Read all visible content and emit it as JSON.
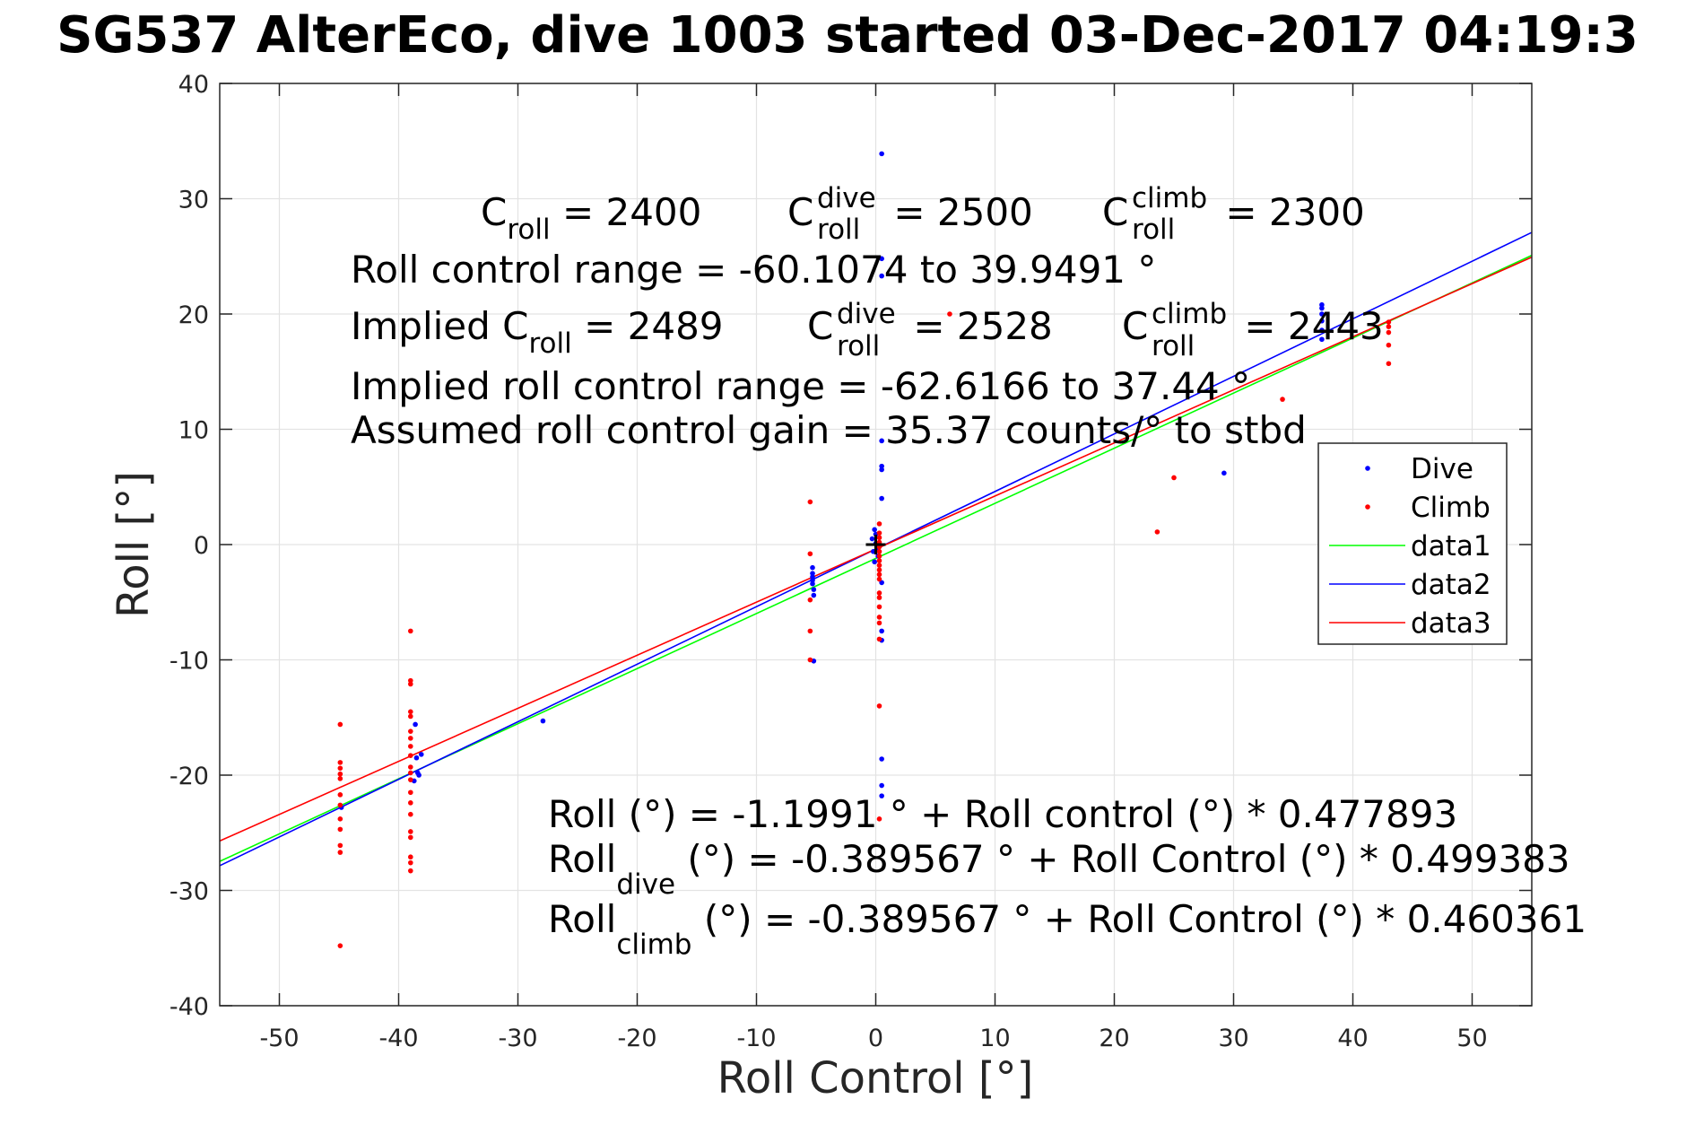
{
  "chart_data": {
    "type": "scatter",
    "title": "SG537 AlterEco, dive 1003 started 03-Dec-2017 04:19:3",
    "xlabel": "Roll Control [°]",
    "ylabel": "Roll [°]",
    "xlim": [
      -55,
      55
    ],
    "ylim": [
      -40,
      40
    ],
    "xticks": [
      -50,
      -40,
      -30,
      -20,
      -10,
      0,
      10,
      20,
      30,
      40,
      50
    ],
    "yticks": [
      -40,
      -30,
      -20,
      -10,
      0,
      10,
      20,
      30,
      40
    ],
    "grid": true,
    "legend_position": "right",
    "colors": {
      "dive": "#0000ff",
      "climb": "#ff0000",
      "data1": "#00ff00",
      "data2": "#0000ff",
      "data3": "#ff0000"
    },
    "series": [
      {
        "name": "Dive",
        "kind": "points",
        "color": "#0000ff",
        "points": [
          [
            -38.6,
            -15.6
          ],
          [
            -38.5,
            -18.5
          ],
          [
            -38.4,
            -19.8
          ],
          [
            -38.3,
            -20.0
          ],
          [
            -38.7,
            -20.5
          ],
          [
            -38.1,
            -18.2
          ],
          [
            -44.8,
            -22.8
          ],
          [
            -27.9,
            -15.3
          ],
          [
            -5.3,
            -2.0
          ],
          [
            -5.3,
            -2.5
          ],
          [
            -5.3,
            -2.8
          ],
          [
            -5.3,
            -3.1
          ],
          [
            -5.3,
            -3.4
          ],
          [
            -5.2,
            -3.9
          ],
          [
            -5.2,
            -4.4
          ],
          [
            -5.2,
            -10.1
          ],
          [
            -0.3,
            0.5
          ],
          [
            -0.1,
            1.3
          ],
          [
            0.0,
            0.1
          ],
          [
            0.1,
            -0.3
          ],
          [
            -0.2,
            -0.6
          ],
          [
            0.2,
            -1.0
          ],
          [
            0.0,
            0.9
          ],
          [
            -0.1,
            -1.5
          ],
          [
            0.5,
            33.9
          ],
          [
            0.5,
            24.8
          ],
          [
            0.5,
            23.3
          ],
          [
            0.5,
            9.0
          ],
          [
            0.5,
            6.8
          ],
          [
            0.5,
            6.5
          ],
          [
            0.5,
            4.0
          ],
          [
            0.5,
            -3.3
          ],
          [
            0.5,
            -7.5
          ],
          [
            0.5,
            -8.3
          ],
          [
            0.5,
            -18.6
          ],
          [
            0.5,
            -20.9
          ],
          [
            0.5,
            -21.8
          ],
          [
            37.4,
            20.8
          ],
          [
            37.4,
            20.5
          ],
          [
            37.4,
            20.0
          ],
          [
            37.4,
            19.4
          ],
          [
            37.4,
            18.6
          ],
          [
            37.4,
            17.8
          ],
          [
            29.2,
            6.2
          ]
        ]
      },
      {
        "name": "Climb",
        "kind": "points",
        "color": "#ff0000",
        "points": [
          [
            -44.9,
            -15.6
          ],
          [
            -44.9,
            -18.9
          ],
          [
            -44.9,
            -19.4
          ],
          [
            -44.9,
            -19.9
          ],
          [
            -44.9,
            -20.3
          ],
          [
            -44.9,
            -21.7
          ],
          [
            -44.9,
            -22.6
          ],
          [
            -44.9,
            -23.8
          ],
          [
            -44.9,
            -24.7
          ],
          [
            -44.9,
            -26.1
          ],
          [
            -44.9,
            -26.7
          ],
          [
            -44.9,
            -34.8
          ],
          [
            -39.0,
            -7.5
          ],
          [
            -39.0,
            -11.8
          ],
          [
            -39.0,
            -12.1
          ],
          [
            -39.0,
            -14.5
          ],
          [
            -39.0,
            -14.9
          ],
          [
            -39.0,
            -16.2
          ],
          [
            -39.0,
            -16.8
          ],
          [
            -39.0,
            -17.5
          ],
          [
            -39.0,
            -18.3
          ],
          [
            -39.0,
            -19.3
          ],
          [
            -39.0,
            -19.8
          ],
          [
            -39.0,
            -20.4
          ],
          [
            -39.0,
            -21.5
          ],
          [
            -39.0,
            -22.4
          ],
          [
            -39.0,
            -23.4
          ],
          [
            -39.0,
            -24.9
          ],
          [
            -39.0,
            -25.4
          ],
          [
            -39.0,
            -27.1
          ],
          [
            -39.0,
            -27.6
          ],
          [
            -39.0,
            -28.3
          ],
          [
            -5.5,
            3.7
          ],
          [
            -5.5,
            -0.8
          ],
          [
            -5.5,
            -4.8
          ],
          [
            -5.5,
            -7.5
          ],
          [
            -5.5,
            -10.0
          ],
          [
            0.3,
            1.8
          ],
          [
            0.3,
            1.0
          ],
          [
            0.3,
            0.6
          ],
          [
            0.3,
            0.2
          ],
          [
            0.3,
            -0.2
          ],
          [
            0.3,
            -0.6
          ],
          [
            0.3,
            -1.0
          ],
          [
            0.3,
            -1.4
          ],
          [
            0.3,
            -1.8
          ],
          [
            0.3,
            -2.2
          ],
          [
            0.3,
            -2.6
          ],
          [
            0.3,
            -3.0
          ],
          [
            0.3,
            -4.2
          ],
          [
            0.3,
            -4.6
          ],
          [
            0.3,
            -5.4
          ],
          [
            0.3,
            -6.3
          ],
          [
            0.3,
            -6.8
          ],
          [
            0.3,
            -8.2
          ],
          [
            0.3,
            -14.0
          ],
          [
            0.3,
            -23.8
          ],
          [
            6.2,
            20.0
          ],
          [
            25.0,
            5.8
          ],
          [
            23.6,
            1.1
          ],
          [
            34.1,
            12.6
          ],
          [
            43.0,
            19.3
          ],
          [
            43.0,
            18.9
          ],
          [
            43.0,
            18.4
          ],
          [
            43.0,
            17.3
          ],
          [
            43.0,
            15.7
          ]
        ]
      },
      {
        "name": "data1",
        "kind": "line",
        "color": "#00ff00",
        "intercept": -1.1991,
        "slope": 0.477893
      },
      {
        "name": "data2",
        "kind": "line",
        "color": "#0000ff",
        "intercept": -0.389567,
        "slope": 0.499383
      },
      {
        "name": "data3",
        "kind": "line",
        "color": "#ff0000",
        "intercept": -0.389567,
        "slope": 0.460361
      }
    ],
    "centroid_marker": [
      0.0,
      0.0
    ],
    "annotations": {
      "c_roll": {
        "base": "C",
        "sub": "roll",
        "rest": " = 2400"
      },
      "c_roll_dive": {
        "base": "C",
        "sup": "dive",
        "sub": "roll",
        "rest": " = 2500"
      },
      "c_roll_climb": {
        "base": "C",
        "sup": "climb",
        "sub": "roll",
        "rest": " = 2300"
      },
      "range": "Roll control range = -60.1074 to 39.9491 °",
      "implied_c_roll": {
        "base": "Implied C",
        "sub": "roll",
        "rest": " = 2489"
      },
      "implied_c_roll_dive": {
        "base": "C",
        "sup": "dive",
        "sub": "roll",
        "rest": " = 2528"
      },
      "implied_c_roll_climb": {
        "base": "C",
        "sup": "climb",
        "sub": "roll",
        "rest": " = 2443"
      },
      "implied_range": "Implied roll control range = -62.6166 to 37.44 °",
      "gain": "Assumed roll control gain = 35.37 counts/° to stbd",
      "fit_all": "Roll (°) = -1.1991 ° + Roll control (°) * 0.477893",
      "fit_dive": {
        "base": "Roll",
        "sub": "dive",
        "rest": " (°) = -0.389567 ° + Roll Control (°) * 0.499383"
      },
      "fit_climb": {
        "base": "Roll",
        "sub": "climb",
        "rest": " (°) = -0.389567 ° + Roll Control (°) * 0.460361"
      }
    }
  }
}
